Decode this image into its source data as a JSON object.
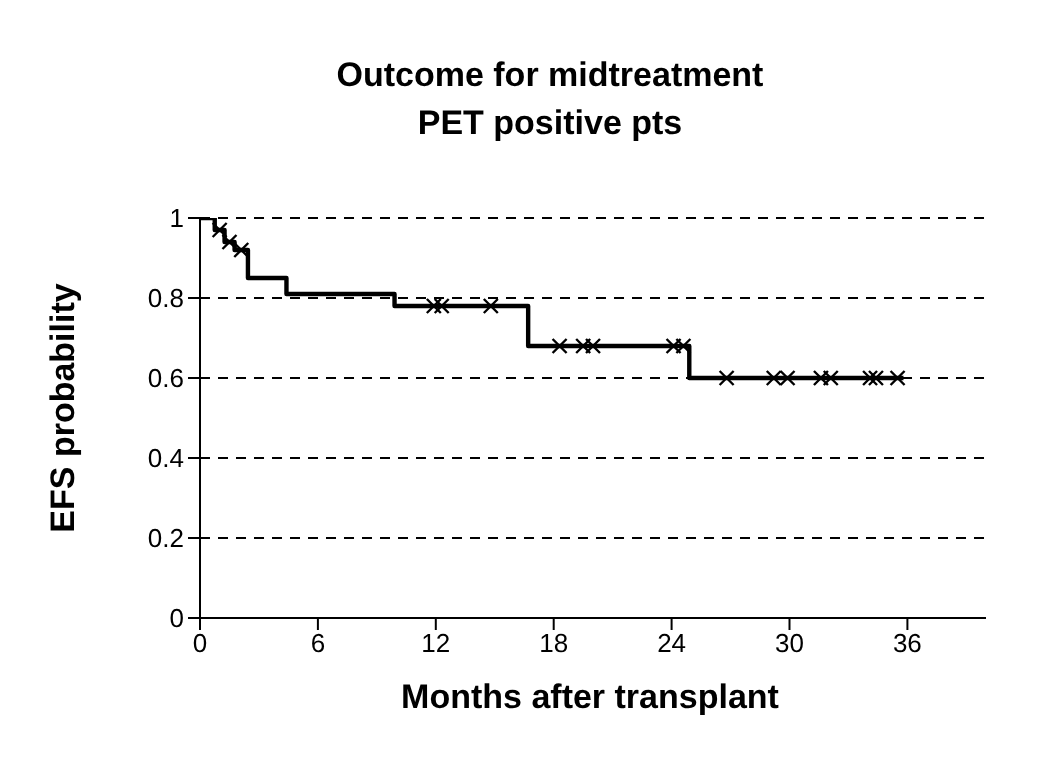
{
  "chart_data": {
    "type": "step",
    "title": "Outcome for midtreatment PET positive pts",
    "xlabel": "Months after transplant",
    "ylabel": "EFS probability",
    "xlim": [
      0,
      40
    ],
    "xticks": [
      0,
      6,
      12,
      18,
      24,
      30,
      36
    ],
    "ylim": [
      0,
      1
    ],
    "yticks": [
      0,
      0.2,
      0.4,
      0.6,
      0.8,
      1
    ],
    "grid": "y",
    "line_style": "solid",
    "series": [
      {
        "color": "#000000",
        "marker": "none",
        "x": [
          0,
          0.75,
          1.25,
          1.76,
          2.44,
          4.4,
          9.9,
          16.7,
          24.9,
          35.8
        ],
        "values": [
          1,
          0.97,
          0.94,
          0.92,
          0.85,
          0.81,
          0.78,
          0.68,
          0.6,
          0.6
        ]
      },
      {
        "type": "scatter",
        "color": "#000000",
        "marker": "cross",
        "x": [
          1.0,
          1.5,
          2.1,
          11.9,
          12.3,
          14.8,
          18.3,
          19.5,
          20.0,
          24.1,
          24.6,
          26.8,
          29.2,
          29.9,
          31.6,
          32.1,
          34.1,
          34.4,
          35.5
        ],
        "values": [
          0.97,
          0.94,
          0.92,
          0.78,
          0.78,
          0.78,
          0.68,
          0.68,
          0.68,
          0.68,
          0.68,
          0.6,
          0.6,
          0.6,
          0.6,
          0.6,
          0.6,
          0.6,
          0.6
        ]
      }
    ]
  }
}
